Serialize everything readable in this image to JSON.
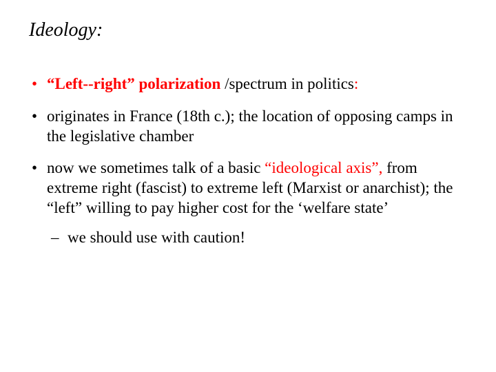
{
  "title": "Ideology:",
  "bullets": {
    "b1": {
      "part1": "“Left--right” polarization ",
      "part2": "/spectrum in politics",
      "part3": ":"
    },
    "b2": "originates in France (18th c.); the location of opposing camps in the legislative chamber",
    "b3": {
      "part1": "now we sometimes talk of a basic ",
      "part2": "“ideological axis”,",
      "part3": " from extreme right (fascist) to extreme left (Marxist or anarchist); the “left” willing to pay higher cost for the ‘welfare state’"
    },
    "sub1": "we should use with caution!"
  },
  "colors": {
    "accent": "#ff0000",
    "text": "#000000",
    "background": "#ffffff"
  },
  "typography": {
    "title_fontsize": 28,
    "body_fontsize": 23,
    "font_family": "Times New Roman"
  }
}
